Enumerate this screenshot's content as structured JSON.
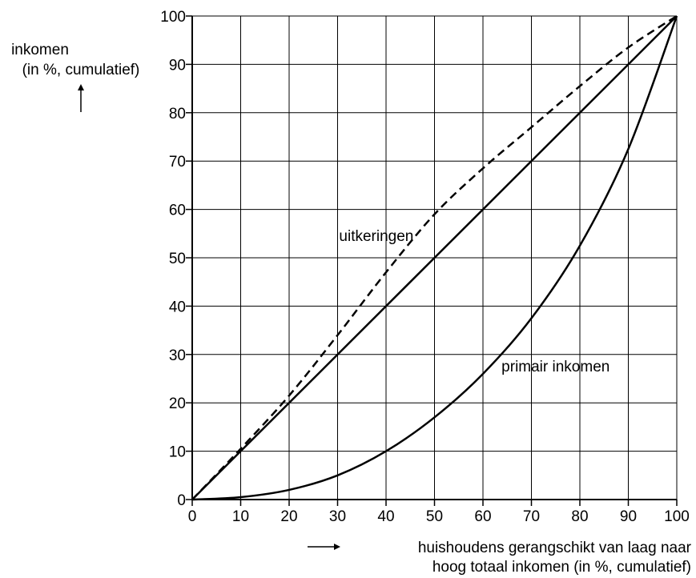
{
  "chart_data": {
    "type": "line",
    "title": "",
    "ylabel_line1": "inkomen",
    "ylabel_line2": "(in %, cumulatief)",
    "xlabel_line1": "huishoudens gerangschikt van laag naar",
    "xlabel_line2": "hoog totaal inkomen (in %, cumulatief)",
    "xlim": [
      0,
      100
    ],
    "ylim": [
      0,
      100
    ],
    "grid": true,
    "xticks": [
      0,
      10,
      20,
      30,
      40,
      50,
      60,
      70,
      80,
      90,
      100
    ],
    "yticks": [
      0,
      10,
      20,
      30,
      40,
      50,
      60,
      70,
      80,
      90,
      100
    ],
    "series": [
      {
        "name": "uitkeringen",
        "style": "dashed",
        "x": [
          0,
          10,
          20,
          30,
          40,
          50,
          60,
          70,
          80,
          90,
          100
        ],
        "y": [
          0,
          10.5,
          21.5,
          34,
          47,
          59,
          68.5,
          77,
          85.5,
          93.5,
          100
        ]
      },
      {
        "name": "",
        "style": "solid",
        "x": [
          0,
          100
        ],
        "y": [
          0,
          100
        ]
      },
      {
        "name": "primair inkomen",
        "style": "solid",
        "x": [
          0,
          10,
          20,
          30,
          40,
          50,
          60,
          70,
          80,
          90,
          100
        ],
        "y": [
          0,
          0.5,
          2,
          5,
          10,
          17,
          26,
          37.5,
          52.5,
          72.5,
          100
        ]
      }
    ],
    "annotations": [
      {
        "text": "uitkeringen",
        "x": 38,
        "y": 53.5
      },
      {
        "text": "primair inkomen",
        "x": 75,
        "y": 26.5
      }
    ]
  }
}
